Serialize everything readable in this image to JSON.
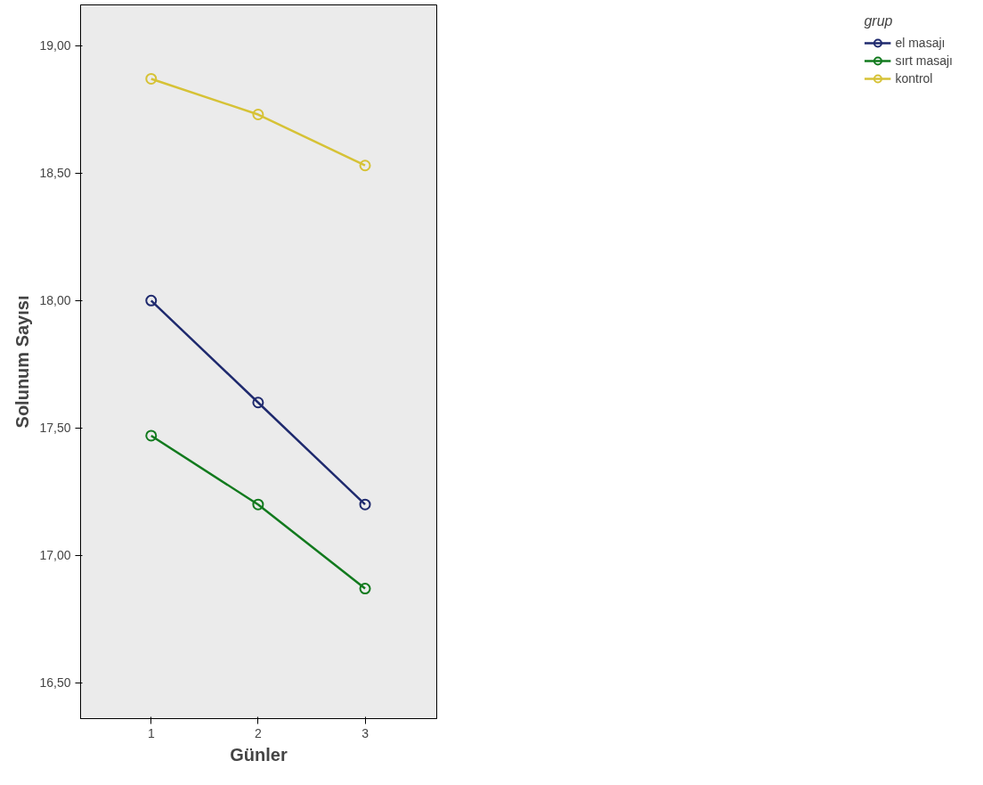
{
  "chart_data": {
    "type": "line",
    "xlabel": "Günler",
    "ylabel": "Solunum Sayısı",
    "legend_title": "grup",
    "legend": "top right",
    "marker": "circle",
    "line_style": "solid",
    "grid": false,
    "x": [
      1,
      2,
      3
    ],
    "xlim": [
      0.34,
      3.67
    ],
    "xticks": [
      1,
      2,
      3
    ],
    "ylim": [
      16.36,
      19.16
    ],
    "yticks": [
      {
        "value": 16.5,
        "label": "16,50"
      },
      {
        "value": 17,
        "label": "17,00"
      },
      {
        "value": 17.5,
        "label": "17,50"
      },
      {
        "value": 18,
        "label": "18,00"
      },
      {
        "value": 18.5,
        "label": "18,50"
      },
      {
        "value": 19,
        "label": "19,00"
      }
    ],
    "series": [
      {
        "name": "el masajı",
        "color": "#1f2a6e",
        "values": [
          18.0,
          17.6,
          17.2
        ]
      },
      {
        "name": "sırt masajı",
        "color": "#127a1e",
        "values": [
          17.47,
          17.2,
          16.87
        ]
      },
      {
        "name": "kontrol",
        "color": "#d6c236",
        "values": [
          18.87,
          18.73,
          18.53
        ]
      }
    ]
  }
}
